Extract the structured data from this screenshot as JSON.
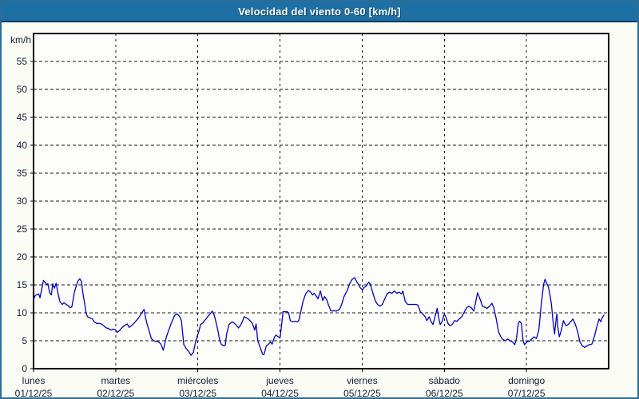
{
  "window": {
    "title": "Velocidad del viento 0-60 [km/h]"
  },
  "colors": {
    "titlebar_bg": "#1e6fa4",
    "titlebar_edge": "#0d3d60",
    "frame_border": "#2a6d96",
    "page_bg": "#fbfcf6",
    "plot_bg": "#fdfefb",
    "grid": "#1a1a1a",
    "axis": "#000000",
    "text": "#141e32",
    "line": "#0000cc"
  },
  "chart_data": {
    "type": "line",
    "title": "Velocidad del viento 0-60 [km/h]",
    "ylabel": "km/h",
    "xlabel": "",
    "ylim": [
      0,
      60
    ],
    "ytick_step": 5,
    "ytick_labels": [
      "0",
      "5",
      "10",
      "15",
      "20",
      "25",
      "30",
      "35",
      "40",
      "45",
      "50",
      "55"
    ],
    "grid": true,
    "legend_position": "none",
    "x_unit": "hours",
    "xlim": [
      0,
      168
    ],
    "categories": [
      {
        "weekday": "lunes",
        "date": "01/12/25"
      },
      {
        "weekday": "martes",
        "date": "02/12/25"
      },
      {
        "weekday": "miércoles",
        "date": "03/12/25"
      },
      {
        "weekday": "jueves",
        "date": "04/12/25"
      },
      {
        "weekday": "viernes",
        "date": "05/12/25"
      },
      {
        "weekday": "sábado",
        "date": "06/12/25"
      },
      {
        "weekday": "domingo",
        "date": "07/12/25"
      }
    ],
    "series": [
      {
        "name": "Velocidad del viento",
        "color": "#0000cc",
        "points": [
          [
            0,
            12.4
          ],
          [
            0.5,
            13.1
          ],
          [
            1.5,
            13.4
          ],
          [
            1.9,
            12.7
          ],
          [
            2.9,
            15.8
          ],
          [
            3.8,
            15.1
          ],
          [
            4.2,
            15.2
          ],
          [
            4.7,
            13.6
          ],
          [
            5.2,
            13.2
          ],
          [
            5.6,
            15.2
          ],
          [
            6.1,
            14.4
          ],
          [
            6.6,
            15.3
          ],
          [
            7,
            13.9
          ],
          [
            7.7,
            12
          ],
          [
            8.4,
            11.5
          ],
          [
            8.9,
            11.8
          ],
          [
            9.3,
            11.6
          ],
          [
            10,
            11.3
          ],
          [
            10.7,
            10.9
          ],
          [
            11.2,
            11.1
          ],
          [
            11.9,
            13.6
          ],
          [
            12.6,
            15.1
          ],
          [
            13.1,
            15.8
          ],
          [
            13.5,
            16.1
          ],
          [
            14,
            15.6
          ],
          [
            14.4,
            13.6
          ],
          [
            14.9,
            11.7
          ],
          [
            15.4,
            9.8
          ],
          [
            15.8,
            9.3
          ],
          [
            16.5,
            9.1
          ],
          [
            17.2,
            8.9
          ],
          [
            17.7,
            8.4
          ],
          [
            18.4,
            8.1
          ],
          [
            19.1,
            8.1
          ],
          [
            19.8,
            8
          ],
          [
            20.5,
            7.7
          ],
          [
            21.2,
            7.3
          ],
          [
            21.9,
            7.2
          ],
          [
            22.6,
            6.9
          ],
          [
            23.3,
            7.1
          ],
          [
            24,
            6.9
          ],
          [
            24.4,
            6.5
          ],
          [
            25.1,
            6.8
          ],
          [
            25.6,
            7.2
          ],
          [
            26.3,
            7.6
          ],
          [
            27,
            7.9
          ],
          [
            27.4,
            8
          ],
          [
            27.9,
            7.4
          ],
          [
            28.6,
            7.7
          ],
          [
            29.3,
            8.1
          ],
          [
            30,
            8.6
          ],
          [
            30.7,
            9.1
          ],
          [
            31.4,
            9.8
          ],
          [
            32.3,
            10.6
          ],
          [
            32.8,
            8.9
          ],
          [
            33.2,
            7.9
          ],
          [
            33.9,
            6.5
          ],
          [
            34.4,
            5.4
          ],
          [
            35.1,
            5
          ],
          [
            35.8,
            4.9
          ],
          [
            36.5,
            4.8
          ],
          [
            37.2,
            4.4
          ],
          [
            37.9,
            3.3
          ],
          [
            38.3,
            4.3
          ],
          [
            38.8,
            5.7
          ],
          [
            39.5,
            6.9
          ],
          [
            40.2,
            8.1
          ],
          [
            40.9,
            9.1
          ],
          [
            41.3,
            9.6
          ],
          [
            42,
            9.8
          ],
          [
            42.7,
            9.3
          ],
          [
            43.2,
            8.6
          ],
          [
            43.9,
            4.3
          ],
          [
            44.6,
            3.6
          ],
          [
            45.3,
            3.1
          ],
          [
            46,
            2.4
          ],
          [
            46.7,
            2.9
          ],
          [
            47.4,
            5
          ],
          [
            48.3,
            6.7
          ],
          [
            48.8,
            7.9
          ],
          [
            49.5,
            8.2
          ],
          [
            49.9,
            8.6
          ],
          [
            50.4,
            8.9
          ],
          [
            51.1,
            9.5
          ],
          [
            51.6,
            9.8
          ],
          [
            52.2,
            10.3
          ],
          [
            52.7,
            9.7
          ],
          [
            53.2,
            8.6
          ],
          [
            53.9,
            6.7
          ],
          [
            54.3,
            5.3
          ],
          [
            54.8,
            4.4
          ],
          [
            55.5,
            4.1
          ],
          [
            56,
            4.2
          ],
          [
            56.4,
            6.2
          ],
          [
            57.1,
            7.9
          ],
          [
            57.6,
            8.2
          ],
          [
            58,
            8.4
          ],
          [
            58.7,
            8.1
          ],
          [
            59.2,
            7.8
          ],
          [
            59.9,
            7.3
          ],
          [
            60.4,
            7.7
          ],
          [
            61.1,
            8.6
          ],
          [
            61.5,
            9.3
          ],
          [
            62.2,
            9.1
          ],
          [
            62.7,
            8.9
          ],
          [
            63.4,
            8.5
          ],
          [
            63.9,
            8.1
          ],
          [
            64.6,
            6.9
          ],
          [
            65,
            8
          ],
          [
            65.5,
            5
          ],
          [
            66.2,
            3.8
          ],
          [
            66.9,
            2.6
          ],
          [
            67.3,
            2.5
          ],
          [
            68,
            4.1
          ],
          [
            68.5,
            4.3
          ],
          [
            69.2,
            4.8
          ],
          [
            69.7,
            4.4
          ],
          [
            70.4,
            5.7
          ],
          [
            70.8,
            6
          ],
          [
            71.5,
            5.7
          ],
          [
            72,
            5.5
          ],
          [
            72.4,
            7.5
          ],
          [
            72.9,
            10.2
          ],
          [
            73.4,
            10.2
          ],
          [
            74.1,
            10.2
          ],
          [
            74.5,
            10
          ],
          [
            75,
            8.6
          ],
          [
            75.7,
            8.4
          ],
          [
            76.4,
            8.5
          ],
          [
            77.1,
            8.4
          ],
          [
            77.5,
            8.6
          ],
          [
            78,
            10
          ],
          [
            78.7,
            12
          ],
          [
            79.2,
            12.9
          ],
          [
            79.6,
            13.5
          ],
          [
            80.3,
            14
          ],
          [
            80.8,
            13.8
          ],
          [
            81.5,
            13.2
          ],
          [
            82,
            13.5
          ],
          [
            82.7,
            12.9
          ],
          [
            83.1,
            12.5
          ],
          [
            83.8,
            13.9
          ],
          [
            84.5,
            12.2
          ],
          [
            85,
            12.9
          ],
          [
            85.7,
            12.3
          ],
          [
            86.1,
            11.5
          ],
          [
            86.8,
            10.4
          ],
          [
            87.3,
            10.3
          ],
          [
            87.7,
            10.4
          ],
          [
            88.4,
            10.3
          ],
          [
            89.4,
            10.6
          ],
          [
            90,
            11.5
          ],
          [
            90.7,
            12.9
          ],
          [
            91.7,
            14.1
          ],
          [
            92.4,
            15.3
          ],
          [
            93.1,
            16
          ],
          [
            93.8,
            16.3
          ],
          [
            94.2,
            15.8
          ],
          [
            94.9,
            15.1
          ],
          [
            95.4,
            14.5
          ],
          [
            96.1,
            14.1
          ],
          [
            96.5,
            14.5
          ],
          [
            97.2,
            14.8
          ],
          [
            97.9,
            15.5
          ],
          [
            98.4,
            15.1
          ],
          [
            99.1,
            13.6
          ],
          [
            99.8,
            12.2
          ],
          [
            100.5,
            11.5
          ],
          [
            101.2,
            11.2
          ],
          [
            101.9,
            11.5
          ],
          [
            102.6,
            12.5
          ],
          [
            103.3,
            13.4
          ],
          [
            104,
            13.7
          ],
          [
            104.7,
            13.5
          ],
          [
            105.4,
            13.9
          ],
          [
            106.1,
            13.5
          ],
          [
            106.8,
            13.7
          ],
          [
            107.5,
            13.4
          ],
          [
            107.9,
            13.9
          ],
          [
            108.6,
            12
          ],
          [
            109.3,
            11.5
          ],
          [
            110,
            11.5
          ],
          [
            110.9,
            11.5
          ],
          [
            111.6,
            11.5
          ],
          [
            112.3,
            11.4
          ],
          [
            113,
            10.2
          ],
          [
            113.7,
            9.8
          ],
          [
            114.4,
            9.3
          ],
          [
            114.9,
            8.6
          ],
          [
            115.6,
            9.3
          ],
          [
            116,
            8.6
          ],
          [
            116.7,
            7.9
          ],
          [
            117.2,
            9.1
          ],
          [
            117.9,
            10.8
          ],
          [
            118.3,
            9.3
          ],
          [
            118.8,
            7.9
          ],
          [
            119.3,
            8.4
          ],
          [
            120,
            9.8
          ],
          [
            120.4,
            9.3
          ],
          [
            121.1,
            8.1
          ],
          [
            121.6,
            7.7
          ],
          [
            122.3,
            7.9
          ],
          [
            123,
            8.6
          ],
          [
            123.7,
            8.5
          ],
          [
            124.4,
            8.9
          ],
          [
            125.1,
            9.3
          ],
          [
            125.8,
            10.1
          ],
          [
            126.5,
            10.9
          ],
          [
            127.2,
            11.2
          ],
          [
            127.9,
            10.9
          ],
          [
            128.6,
            10.3
          ],
          [
            129,
            11.5
          ],
          [
            129.7,
            13.6
          ],
          [
            130.4,
            12.5
          ],
          [
            131.1,
            11.2
          ],
          [
            131.8,
            11
          ],
          [
            132.5,
            10.8
          ],
          [
            133.2,
            11.2
          ],
          [
            133.9,
            11.7
          ],
          [
            134.4,
            11
          ],
          [
            135.1,
            9.1
          ],
          [
            135.8,
            6.7
          ],
          [
            136.5,
            5.7
          ],
          [
            137.1,
            5.2
          ],
          [
            137.8,
            5
          ],
          [
            138.5,
            5.3
          ],
          [
            139.2,
            5
          ],
          [
            139.9,
            4.8
          ],
          [
            140.6,
            4.3
          ],
          [
            141.1,
            5.5
          ],
          [
            141.6,
            8.1
          ],
          [
            142,
            8.5
          ],
          [
            142.5,
            8.1
          ],
          [
            143,
            5
          ],
          [
            143.4,
            4.3
          ],
          [
            144.1,
            4.8
          ],
          [
            144.8,
            4.9
          ],
          [
            145.5,
            5.3
          ],
          [
            146.2,
            5.7
          ],
          [
            146.9,
            5.4
          ],
          [
            147.6,
            6.9
          ],
          [
            148.3,
            11.5
          ],
          [
            149,
            15.1
          ],
          [
            149.4,
            16
          ],
          [
            149.9,
            15.3
          ],
          [
            150.4,
            14.6
          ],
          [
            150.8,
            13.4
          ],
          [
            151.3,
            11.5
          ],
          [
            151.8,
            8.1
          ],
          [
            152.2,
            6.2
          ],
          [
            152.7,
            9.1
          ],
          [
            152.9,
            9.8
          ],
          [
            153.1,
            7.7
          ],
          [
            153.6,
            5.7
          ],
          [
            154.1,
            6.7
          ],
          [
            154.8,
            8.6
          ],
          [
            155.5,
            7.7
          ],
          [
            156.2,
            7.9
          ],
          [
            156.9,
            8.4
          ],
          [
            157.6,
            8.9
          ],
          [
            158.3,
            7.9
          ],
          [
            159,
            6.5
          ],
          [
            159.6,
            4.8
          ],
          [
            160.3,
            4.1
          ],
          [
            161,
            3.8
          ],
          [
            161.7,
            4.1
          ],
          [
            162.4,
            4.3
          ],
          [
            163.1,
            4.4
          ],
          [
            163.8,
            5.7
          ],
          [
            164.5,
            7.4
          ],
          [
            165.2,
            8.9
          ],
          [
            165.7,
            8.4
          ],
          [
            166.1,
            9.1
          ],
          [
            166.6,
            9.6
          ]
        ]
      }
    ]
  }
}
